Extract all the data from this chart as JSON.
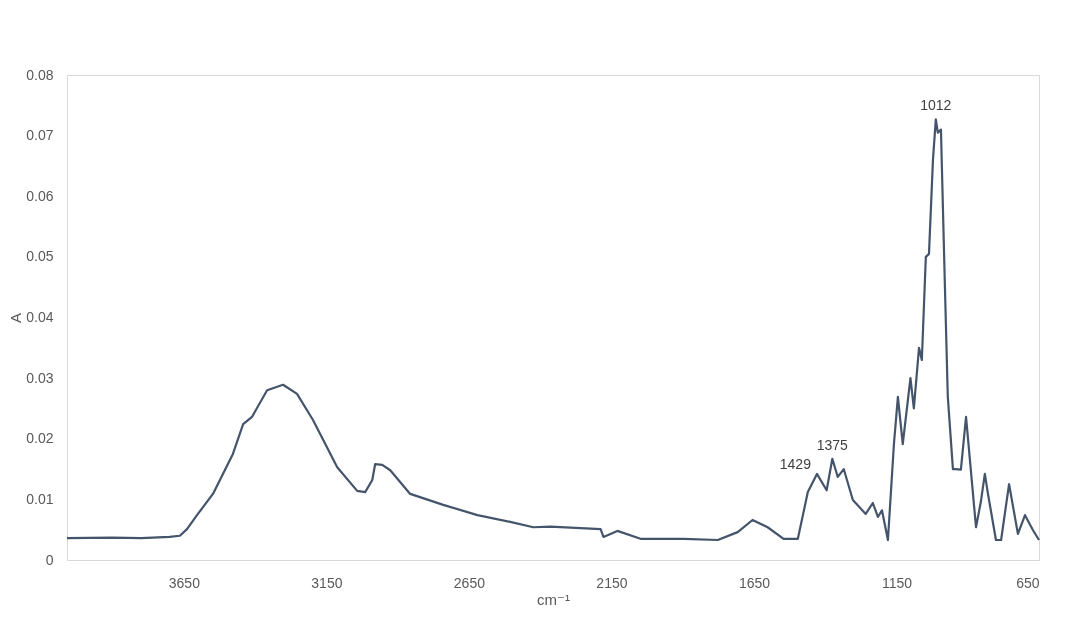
{
  "chart_data": {
    "type": "line",
    "xlabel": "cm⁻¹",
    "ylabel": "A",
    "xlim": [
      4060,
      650
    ],
    "xticks": [
      3650,
      3150,
      2650,
      2150,
      1650,
      1150,
      650
    ],
    "ylim": [
      0,
      0.08
    ],
    "yticks": [
      0,
      0.01,
      0.02,
      0.03,
      0.04,
      0.05,
      0.06,
      0.07,
      0.08
    ],
    "grid": false,
    "annotations": [
      {
        "text": "1429",
        "x": 1429,
        "y": 0.0142
      },
      {
        "text": "1375",
        "x": 1375,
        "y": 0.0167
      },
      {
        "text": "1012",
        "x": 1012,
        "y": 0.0727
      }
    ],
    "series": [
      {
        "color": "#44546a",
        "x": [
          4060,
          3900,
          3800,
          3700,
          3664,
          3639,
          3604,
          3548,
          3478,
          3442,
          3411,
          3358,
          3302,
          3253,
          3197,
          3112,
          3042,
          3014,
          2989,
          2979,
          2954,
          2926,
          2856,
          2740,
          2620,
          2505,
          2424,
          2364,
          2188,
          2178,
          2129,
          2048,
          1897,
          1777,
          1707,
          1655,
          1602,
          1546,
          1496,
          1461,
          1429,
          1395,
          1375,
          1356,
          1335,
          1303,
          1258,
          1233,
          1215,
          1201,
          1180,
          1159,
          1145,
          1128,
          1101,
          1089,
          1071,
          1061,
          1047,
          1036,
          1022,
          1012,
          1005,
          994,
          980,
          970,
          952,
          942,
          924,
          906,
          871,
          854,
          840,
          829,
          801,
          783,
          755,
          724,
          699,
          671,
          650
        ],
        "values": [
          0.0036,
          0.0037,
          0.0036,
          0.0038,
          0.004,
          0.0051,
          0.0074,
          0.0109,
          0.0175,
          0.0224,
          0.0236,
          0.028,
          0.0289,
          0.0274,
          0.0231,
          0.0153,
          0.0114,
          0.0112,
          0.0132,
          0.0158,
          0.0157,
          0.0148,
          0.0109,
          0.0091,
          0.0074,
          0.0063,
          0.0054,
          0.0055,
          0.0051,
          0.0038,
          0.0048,
          0.0035,
          0.0035,
          0.0033,
          0.0046,
          0.0066,
          0.0054,
          0.0035,
          0.0035,
          0.0112,
          0.0142,
          0.0115,
          0.0167,
          0.0137,
          0.015,
          0.0099,
          0.0076,
          0.0094,
          0.0071,
          0.0082,
          0.0033,
          0.0191,
          0.0269,
          0.0191,
          0.03,
          0.025,
          0.035,
          0.033,
          0.05,
          0.0505,
          0.066,
          0.0727,
          0.0705,
          0.071,
          0.045,
          0.027,
          0.015,
          0.015,
          0.0149,
          0.0236,
          0.0054,
          0.0096,
          0.0142,
          0.0109,
          0.0033,
          0.0033,
          0.0125,
          0.0043,
          0.0074,
          0.0049,
          0.0033
        ]
      }
    ]
  }
}
